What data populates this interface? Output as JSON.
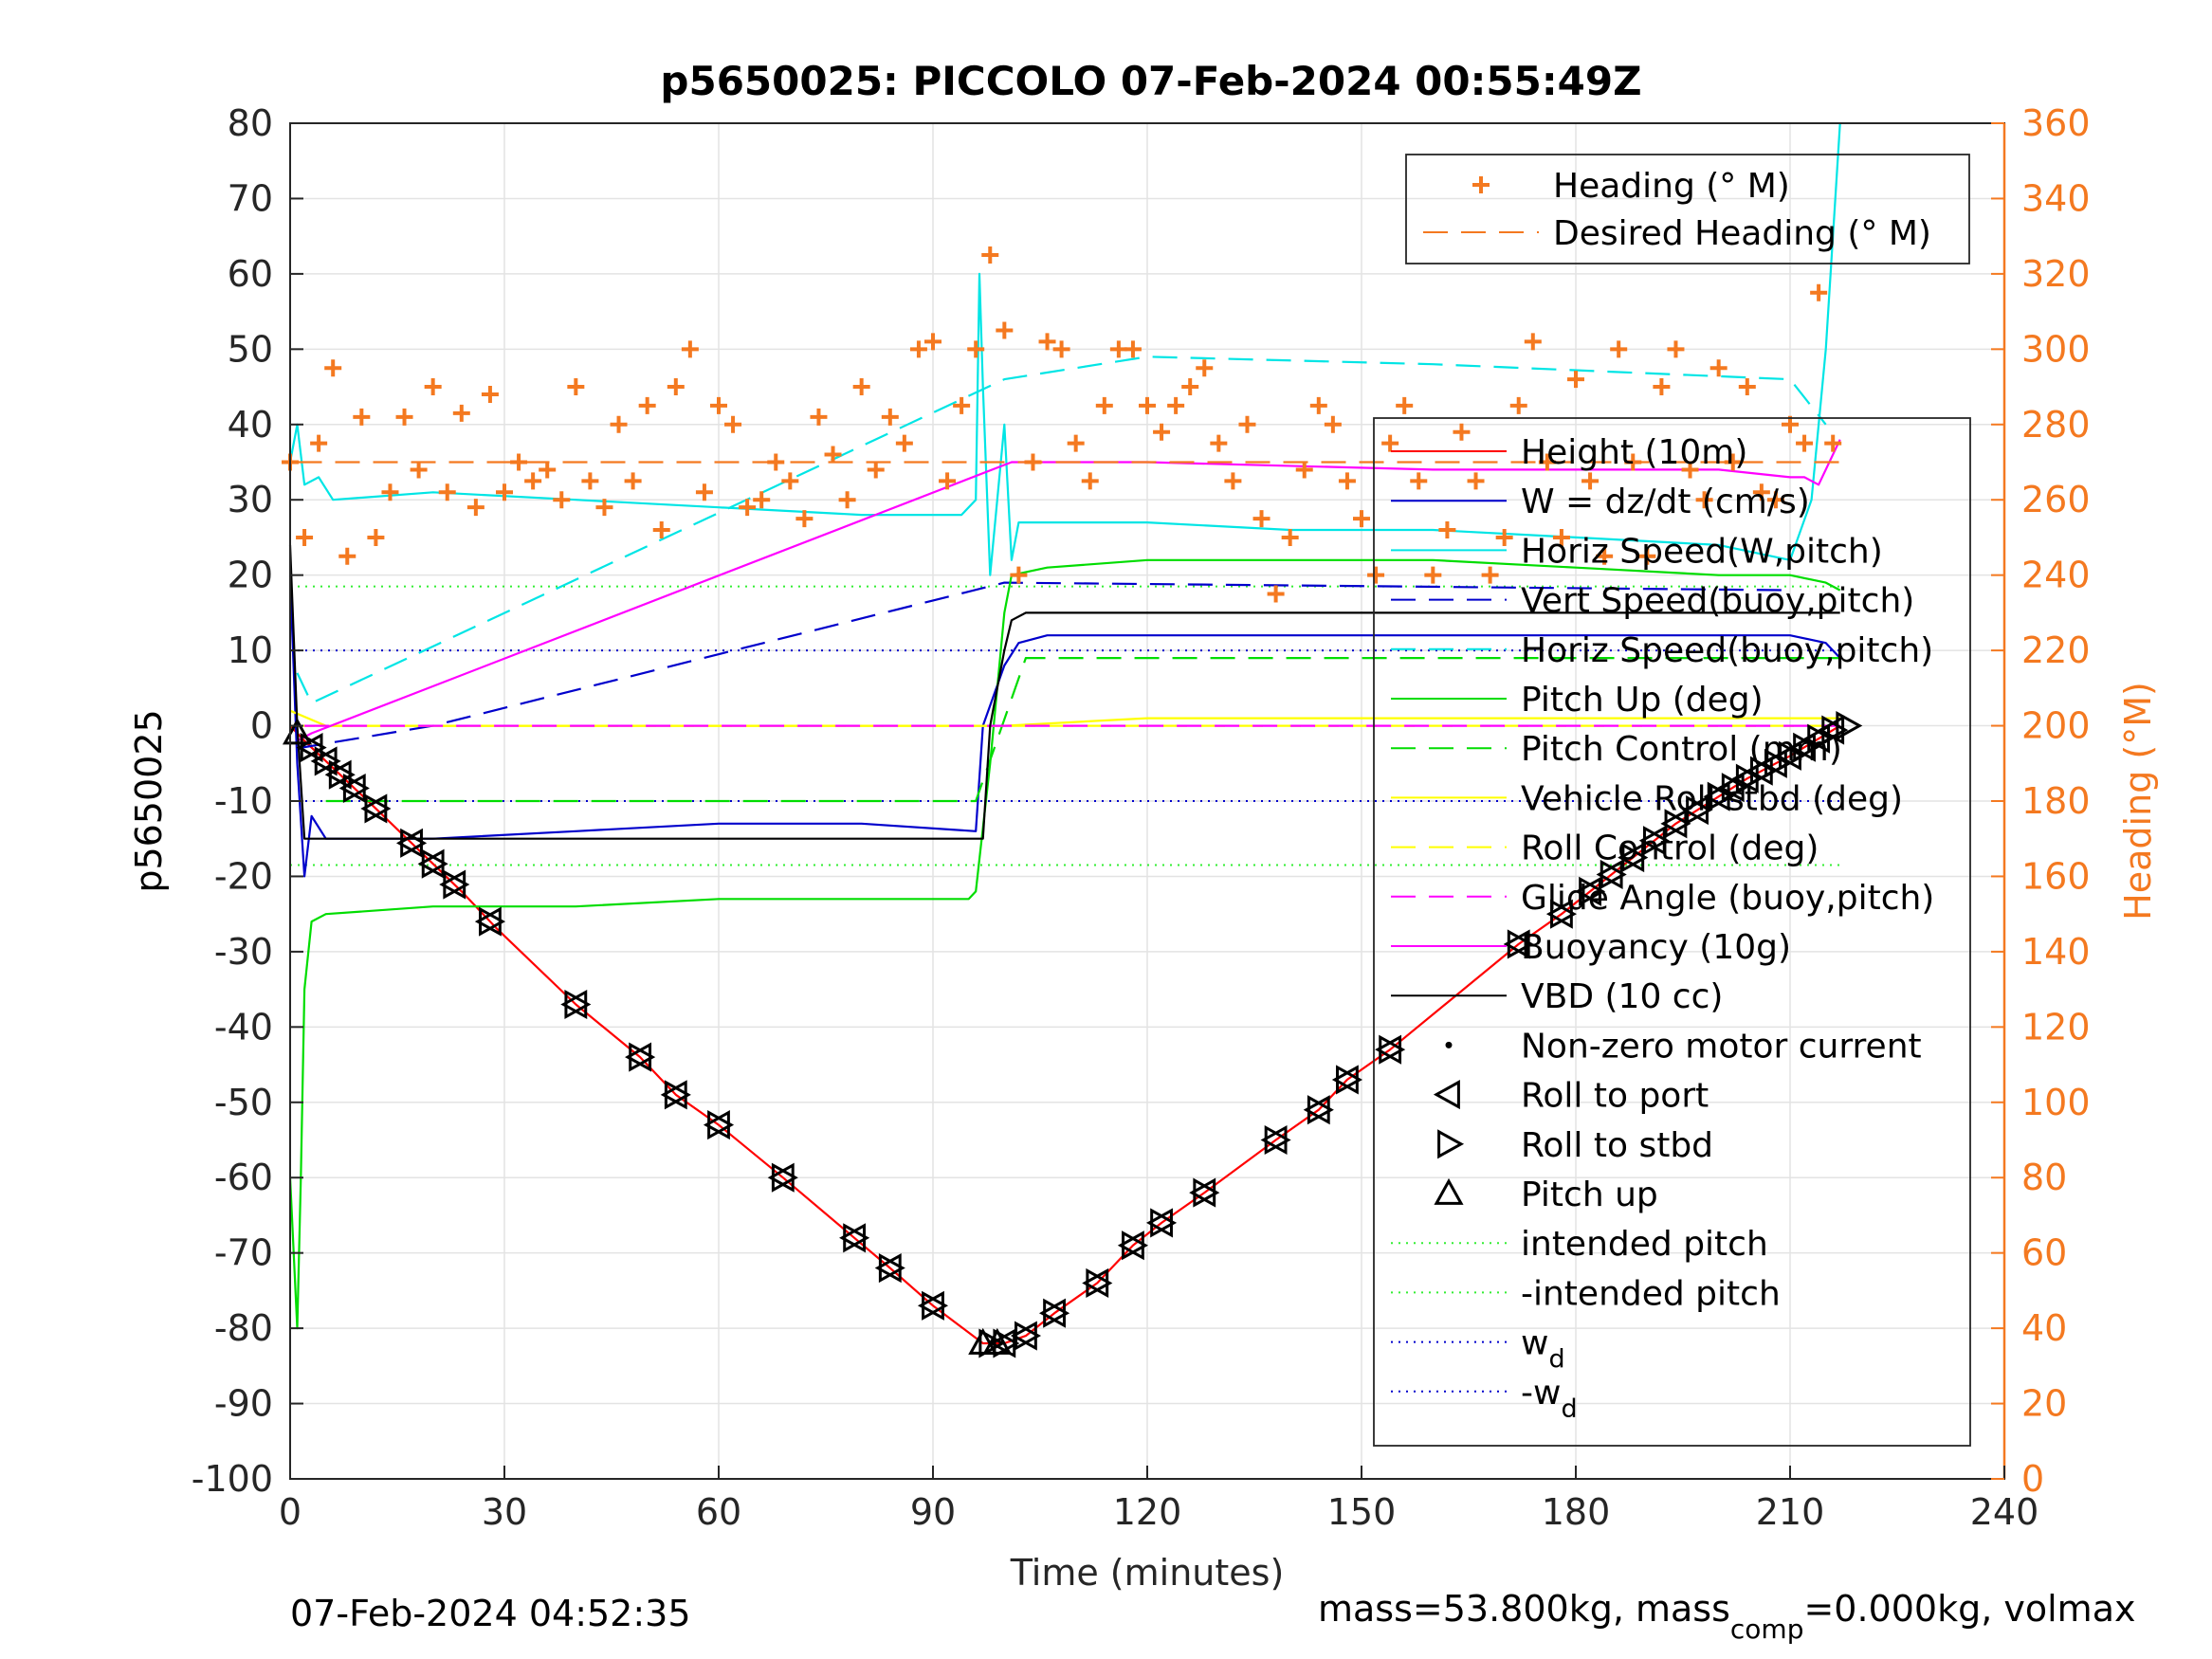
{
  "chart_data": {
    "type": "line",
    "title": "p5650025: PICCOLO 07-Feb-2024 00:55:49Z",
    "xlabel": "Time (minutes)",
    "ylabel": "p5650025",
    "y2label": "Heading (°M)",
    "xlim": [
      0,
      240
    ],
    "ylim": [
      -100,
      80
    ],
    "y2lim": [
      0,
      360
    ],
    "xticks": [
      "0",
      "30",
      "60",
      "90",
      "120",
      "150",
      "180",
      "210",
      "240"
    ],
    "yticks": [
      "80",
      "70",
      "60",
      "50",
      "40",
      "30",
      "20",
      "10",
      "0",
      "-10",
      "-20",
      "-30",
      "-40",
      "-50",
      "-60",
      "-70",
      "-80",
      "-90",
      "-100"
    ],
    "y2ticks": [
      "360",
      "340",
      "320",
      "300",
      "280",
      "260",
      "240",
      "220",
      "200",
      "180",
      "160",
      "140",
      "120",
      "100",
      "80",
      "60",
      "40",
      "20",
      "0"
    ],
    "grid": true,
    "footer_left": "07-Feb-2024 04:52:35",
    "footer_right": {
      "a": "mass=53.800kg, mass",
      "sub": "comp",
      "b": "=0.000kg, volmax"
    },
    "legend_top": [
      {
        "label": "Heading (° M)",
        "color": "#f47920",
        "style": "plus"
      },
      {
        "label": "Desired Heading (° M)",
        "color": "#f47920",
        "style": "dash"
      }
    ],
    "legend_main": [
      {
        "label": "Height (10m)",
        "color": "#ff0000",
        "style": "solid"
      },
      {
        "label": "W = dz/dt (cm/s)",
        "color": "#0000cc",
        "style": "solid"
      },
      {
        "label": "Horiz Speed(W,pitch)",
        "color": "#00e5e5",
        "style": "solid"
      },
      {
        "label": "Vert Speed(buoy,pitch)",
        "color": "#0000cc",
        "style": "dash"
      },
      {
        "label": "Horiz Speed(buoy,pitch)",
        "color": "#00e5e5",
        "style": "dash"
      },
      {
        "label": "Pitch Up (deg)",
        "color": "#00dd00",
        "style": "solid"
      },
      {
        "label": "Pitch Control (mm)",
        "color": "#00dd00",
        "style": "dash"
      },
      {
        "label": "Vehicle Roll stbd (deg)",
        "color": "#ffff00",
        "style": "solid"
      },
      {
        "label": "Roll Control (deg)",
        "color": "#ffff00",
        "style": "dash"
      },
      {
        "label": "Glide Angle (buoy,pitch)",
        "color": "#ff00ff",
        "style": "dash"
      },
      {
        "label": "Buoyancy (10g)",
        "color": "#ff00ff",
        "style": "solid"
      },
      {
        "label": "VBD (10 cc)",
        "color": "#000000",
        "style": "solid"
      },
      {
        "label": "Non-zero motor current",
        "color": "#000000",
        "style": "dot"
      },
      {
        "label": "Roll to port",
        "color": "#000000",
        "style": "tri-left"
      },
      {
        "label": "Roll to stbd",
        "color": "#000000",
        "style": "tri-right"
      },
      {
        "label": "Pitch up",
        "color": "#000000",
        "style": "tri-up"
      },
      {
        "label": "intended pitch",
        "color": "#33ee33",
        "style": "dotted"
      },
      {
        "label": "-intended pitch",
        "color": "#33ee33",
        "style": "dotted"
      },
      {
        "label": "w",
        "sub": "d",
        "color": "#0000cc",
        "style": "dotted"
      },
      {
        "label": "-w",
        "sub": "d",
        "color": "#0000cc",
        "style": "dotted"
      }
    ],
    "series": [
      {
        "name": "Height (10m)",
        "color": "#ff0000",
        "x": [
          0,
          2,
          12,
          24,
          29,
          40,
          49,
          54,
          60,
          69,
          79,
          84,
          90,
          97,
          100,
          103,
          107,
          113,
          118,
          122,
          128,
          138,
          144,
          148,
          154,
          172,
          178,
          186,
          194,
          204,
          210,
          217
        ],
        "y": [
          0,
          -2,
          -11,
          -22,
          -27,
          -37,
          -44,
          -49,
          -53,
          -60,
          -68,
          -72,
          -77,
          -82,
          -82,
          -81,
          -78,
          -74,
          -69,
          -66,
          -62,
          -55,
          -51,
          -47,
          -43,
          -29,
          -25,
          -19,
          -13,
          -7,
          -4,
          0
        ]
      },
      {
        "name": "W = dz/dt (cm/s)",
        "color": "#0000cc",
        "x": [
          0,
          1,
          2,
          3,
          5,
          20,
          40,
          60,
          70,
          80,
          96,
          97,
          100,
          102,
          106,
          120,
          140,
          160,
          180,
          200,
          210,
          215,
          217
        ],
        "y": [
          20,
          -5,
          -20,
          -12,
          -15,
          -15,
          -14,
          -13,
          -13,
          -13,
          -14,
          0,
          8,
          11,
          12,
          12,
          12,
          12,
          12,
          12,
          12,
          11,
          9
        ]
      },
      {
        "name": "Horiz Speed(W,pitch)",
        "color": "#00e5e5",
        "x": [
          0,
          1,
          2,
          4,
          6,
          20,
          40,
          60,
          80,
          94,
          96,
          96.5,
          97,
          98,
          100,
          101,
          102,
          106,
          120,
          140,
          160,
          180,
          200,
          210,
          213,
          215,
          217
        ],
        "y": [
          35,
          40,
          32,
          33,
          30,
          31,
          30,
          29,
          28,
          28,
          30,
          60,
          45,
          20,
          40,
          22,
          27,
          27,
          27,
          26,
          26,
          25,
          24,
          22,
          30,
          50,
          80
        ]
      },
      {
        "name": "Vert Speed(buoy,pitch)",
        "color": "#0000cc",
        "x": [
          1,
          20,
          100,
          210
        ],
        "y": [
          -3,
          0,
          19,
          18
        ]
      },
      {
        "name": "Horiz Speed(buoy,pitch)",
        "color": "#00e5e5",
        "x": [
          1,
          3,
          100,
          120,
          160,
          210,
          215
        ],
        "y": [
          7,
          3,
          46,
          49,
          48,
          46,
          40
        ]
      },
      {
        "name": "Pitch Up (deg)",
        "color": "#00dd00",
        "x": [
          0,
          1,
          1.5,
          2,
          3,
          5,
          20,
          40,
          60,
          80,
          95,
          96,
          98,
          100,
          101,
          106,
          120,
          140,
          160,
          180,
          200,
          210,
          215,
          217
        ],
        "y": [
          -60,
          -80,
          -60,
          -35,
          -26,
          -25,
          -24,
          -24,
          -23,
          -23,
          -23,
          -22,
          -5,
          15,
          20,
          21,
          22,
          22,
          22,
          21,
          20,
          20,
          19,
          18
        ]
      },
      {
        "name": "Pitch Control (mm)",
        "color": "#00dd00",
        "x": [
          5,
          96,
          103,
          217
        ],
        "y": [
          -10,
          -10,
          9,
          9
        ]
      },
      {
        "name": "Vehicle Roll stbd (deg)",
        "color": "#ffff00",
        "x": [
          0,
          5,
          60,
          98,
          100,
          120,
          217
        ],
        "y": [
          2,
          0,
          0,
          0,
          0,
          1,
          1
        ]
      },
      {
        "name": "Roll Control (deg)",
        "color": "#ffff00",
        "x": [
          0,
          217
        ],
        "y": [
          0,
          0
        ]
      },
      {
        "name": "Glide Angle (buoy,pitch)",
        "color": "#ff00ff",
        "x": [
          2,
          217
        ],
        "y": [
          0,
          0
        ]
      },
      {
        "name": "Buoyancy (10g)",
        "color": "#ff00ff",
        "x": [
          1,
          3,
          101,
          120,
          160,
          200,
          210,
          212,
          214,
          217
        ],
        "y": [
          -2,
          -1,
          35,
          35,
          34,
          34,
          33,
          33,
          32,
          38
        ]
      },
      {
        "name": "VBD (10 cc)",
        "color": "#000000",
        "x": [
          0,
          1,
          2,
          97,
          98,
          100,
          101,
          103,
          217
        ],
        "y": [
          24,
          0,
          -15,
          -15,
          0,
          10,
          14,
          15,
          15
        ]
      },
      {
        "name": "Heading (° M)",
        "color": "#f47920",
        "axis": "right",
        "x": [
          0,
          2,
          4,
          6,
          8,
          10,
          12,
          14,
          16,
          18,
          20,
          22,
          24,
          26,
          28,
          30,
          32,
          34,
          36,
          38,
          40,
          42,
          44,
          46,
          48,
          50,
          52,
          54,
          56,
          58,
          60,
          62,
          64,
          66,
          68,
          70,
          72,
          74,
          76,
          78,
          80,
          82,
          84,
          86,
          88,
          90,
          92,
          94,
          96,
          98,
          100,
          102,
          104,
          106,
          108,
          110,
          112,
          114,
          116,
          118,
          120,
          122,
          124,
          126,
          128,
          130,
          132,
          134,
          136,
          138,
          140,
          142,
          144,
          146,
          148,
          150,
          152,
          154,
          156,
          158,
          160,
          162,
          164,
          166,
          168,
          170,
          172,
          174,
          176,
          178,
          180,
          182,
          184,
          186,
          188,
          190,
          192,
          194,
          196,
          198,
          200,
          202,
          204,
          206,
          208,
          210,
          212,
          214,
          216
        ],
        "y": [
          270,
          250,
          275,
          295,
          245,
          282,
          250,
          262,
          282,
          268,
          290,
          262,
          283,
          258,
          288,
          262,
          270,
          265,
          268,
          260,
          290,
          265,
          258,
          280,
          265,
          285,
          252,
          290,
          300,
          262,
          285,
          280,
          258,
          260,
          270,
          265,
          255,
          282,
          272,
          260,
          290,
          268,
          282,
          275,
          300,
          302,
          265,
          285,
          300,
          325,
          305,
          240,
          270,
          302,
          300,
          275,
          265,
          285,
          300,
          300,
          285,
          278,
          285,
          290,
          295,
          275,
          265,
          280,
          255,
          235,
          250,
          268,
          285,
          280,
          265,
          255,
          240,
          275,
          285,
          265,
          240,
          252,
          278,
          265,
          240,
          250,
          285,
          302,
          270,
          250,
          292,
          265,
          245,
          300,
          270,
          245,
          290,
          300,
          268,
          260,
          295,
          270,
          290,
          262,
          260,
          280,
          275,
          315,
          275
        ]
      },
      {
        "name": "Desired Heading (° M)",
        "color": "#f47920",
        "axis": "right",
        "x": [
          1,
          217
        ],
        "y": [
          270,
          270
        ]
      }
    ],
    "reference_lines": [
      {
        "name": "intended pitch",
        "color": "#33ee33",
        "y": 18.5
      },
      {
        "name": "-intended pitch",
        "color": "#33ee33",
        "y": -18.5
      },
      {
        "name": "w_d",
        "color": "#0000cc",
        "y": 10
      },
      {
        "name": "-w_d",
        "color": "#0000cc",
        "y": -10
      }
    ],
    "markers": [
      {
        "type": "tri-up",
        "x": [
          1,
          97,
          99
        ]
      },
      {
        "type": "tri-left",
        "x": [
          3,
          5,
          7,
          9,
          12,
          17,
          20,
          23,
          28,
          40,
          49,
          54,
          60,
          69,
          79,
          84,
          90,
          100,
          103,
          107,
          113,
          118,
          122,
          128,
          138,
          144,
          148,
          154,
          172,
          178,
          182,
          185,
          188,
          191,
          194,
          197,
          200,
          202,
          204,
          206,
          208,
          210,
          212,
          214,
          216
        ]
      },
      {
        "type": "tri-right",
        "x": [
          3,
          5,
          7,
          9,
          12,
          17,
          20,
          23,
          28,
          40,
          49,
          54,
          60,
          69,
          79,
          84,
          90,
          98,
          100,
          103,
          107,
          113,
          118,
          122,
          128,
          138,
          144,
          148,
          154,
          172,
          178,
          182,
          185,
          188,
          191,
          194,
          197,
          200,
          202,
          204,
          206,
          208,
          210,
          212,
          214,
          216,
          218
        ]
      }
    ]
  }
}
